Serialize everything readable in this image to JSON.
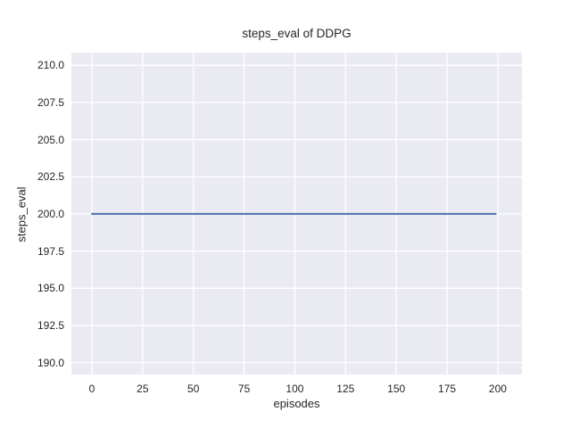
{
  "chart_data": {
    "type": "line",
    "title": "steps_eval of DDPG",
    "xlabel": "episodes",
    "ylabel": "steps_eval",
    "series": [
      {
        "name": "steps_eval",
        "color": "#4c72b0",
        "x": [
          0,
          199
        ],
        "y": [
          200,
          200
        ],
        "description_value": 200
      }
    ],
    "xticks": [
      0,
      25,
      50,
      75,
      100,
      125,
      150,
      175,
      200
    ],
    "xtick_labels": [
      "0",
      "25",
      "50",
      "75",
      "100",
      "125",
      "150",
      "175",
      "200"
    ],
    "yticks": [
      190,
      192.5,
      195,
      197.5,
      200,
      202.5,
      205,
      207.5,
      210
    ],
    "ytick_labels": [
      "190.0",
      "192.5",
      "195.0",
      "197.5",
      "200.0",
      "202.5",
      "205.0",
      "207.5",
      "210.0"
    ],
    "xlim": [
      -10.1,
      211.9
    ],
    "ylim": [
      189.2,
      210.85
    ],
    "grid": true,
    "legend": "none",
    "colors": {
      "plot_background": "#eaeaf2",
      "grid": "#ffffff",
      "figure_background": "#ffffff",
      "text": "#262626"
    }
  }
}
